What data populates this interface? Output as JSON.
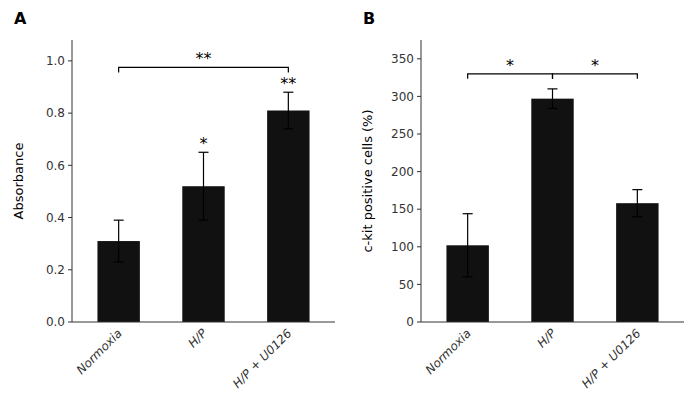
{
  "chart_data": [
    {
      "type": "bar",
      "title": "A",
      "categories": [
        "Normoxia",
        "H/P",
        "H/P + U0126"
      ],
      "values": [
        0.31,
        0.52,
        0.81
      ],
      "errors": [
        0.08,
        0.13,
        0.07
      ],
      "ylabel": "Absorbance",
      "color": "#111111",
      "ylim": [
        0,
        1.08
      ],
      "yticks": [
        {
          "value": 0,
          "label": "0.0"
        },
        0.2,
        0.4,
        0.6,
        0.8,
        {
          "value": 1,
          "label": "1.0"
        }
      ],
      "grid": false,
      "annotations": [
        {
          "text": "*",
          "category": "H/P"
        },
        {
          "text": "**",
          "category": "H/P + U0126"
        },
        {
          "text": "**",
          "from": "Normoxia",
          "to": "H/P + U0126",
          "y": 0.975
        }
      ]
    },
    {
      "type": "bar",
      "title": "B",
      "categories": [
        "Normoxia",
        "H/P",
        "H/P + U0126"
      ],
      "values": [
        102,
        297,
        158
      ],
      "errors": [
        42,
        13,
        18
      ],
      "ylabel": "c-kit positive cells (%)",
      "color": "#111111",
      "ylim": [
        0,
        375
      ],
      "yticks": [
        0,
        50,
        100,
        150,
        200,
        250,
        300,
        350
      ],
      "grid": false,
      "annotations": [
        {
          "text": "*",
          "from": "Normoxia",
          "to": "H/P",
          "y": 330
        },
        {
          "text": "*",
          "from": "H/P",
          "to": "H/P + U0126",
          "y": 330
        }
      ]
    }
  ]
}
